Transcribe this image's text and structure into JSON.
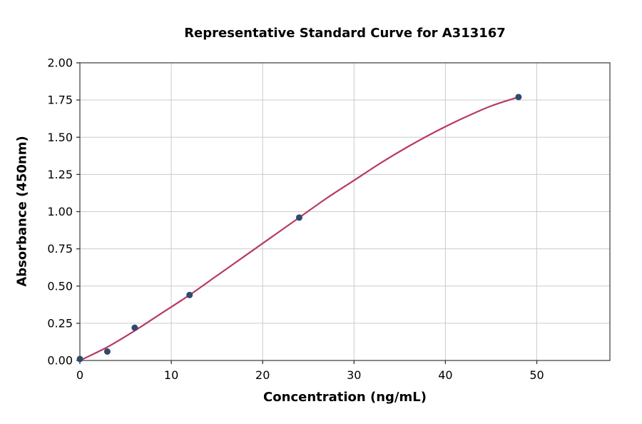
{
  "chart_data": {
    "type": "scatter",
    "title": "Representative Standard Curve for A313167",
    "xlabel": "Concentration (ng/mL)",
    "ylabel": "Absorbance (450nm)",
    "xlim": [
      0,
      58
    ],
    "ylim": [
      0,
      2.0
    ],
    "grid": true,
    "legend": false,
    "xticks": {
      "values": [
        0,
        10,
        20,
        30,
        40,
        50
      ],
      "labels": [
        "0",
        "10",
        "20",
        "30",
        "40",
        "50"
      ]
    },
    "yticks": {
      "values": [
        0.0,
        0.25,
        0.5,
        0.75,
        1.0,
        1.25,
        1.5,
        1.75,
        2.0
      ],
      "labels": [
        "0.00",
        "0.25",
        "0.50",
        "0.75",
        "1.00",
        "1.25",
        "1.50",
        "1.75",
        "2.00"
      ]
    },
    "series": [
      {
        "name": "standard-points",
        "type": "scatter",
        "color": "#2f4a6e",
        "x": [
          0,
          3,
          6,
          12,
          24,
          48
        ],
        "y": [
          0.01,
          0.06,
          0.22,
          0.44,
          0.96,
          1.77
        ]
      },
      {
        "name": "fit-curve",
        "type": "line",
        "color": "#b83a64",
        "x": [
          0,
          3,
          6,
          9,
          12,
          15,
          18,
          21,
          24,
          27,
          30,
          33,
          36,
          39,
          42,
          45,
          48
        ],
        "y": [
          0.0,
          0.09,
          0.2,
          0.32,
          0.44,
          0.57,
          0.7,
          0.83,
          0.96,
          1.09,
          1.21,
          1.33,
          1.44,
          1.54,
          1.63,
          1.71,
          1.77
        ]
      }
    ]
  },
  "style": {
    "grid_color": "#cbcbcb",
    "spine_color": "#555555",
    "tick_color": "#333333",
    "marker_radius": 4.5,
    "curve_width": 2.2
  }
}
